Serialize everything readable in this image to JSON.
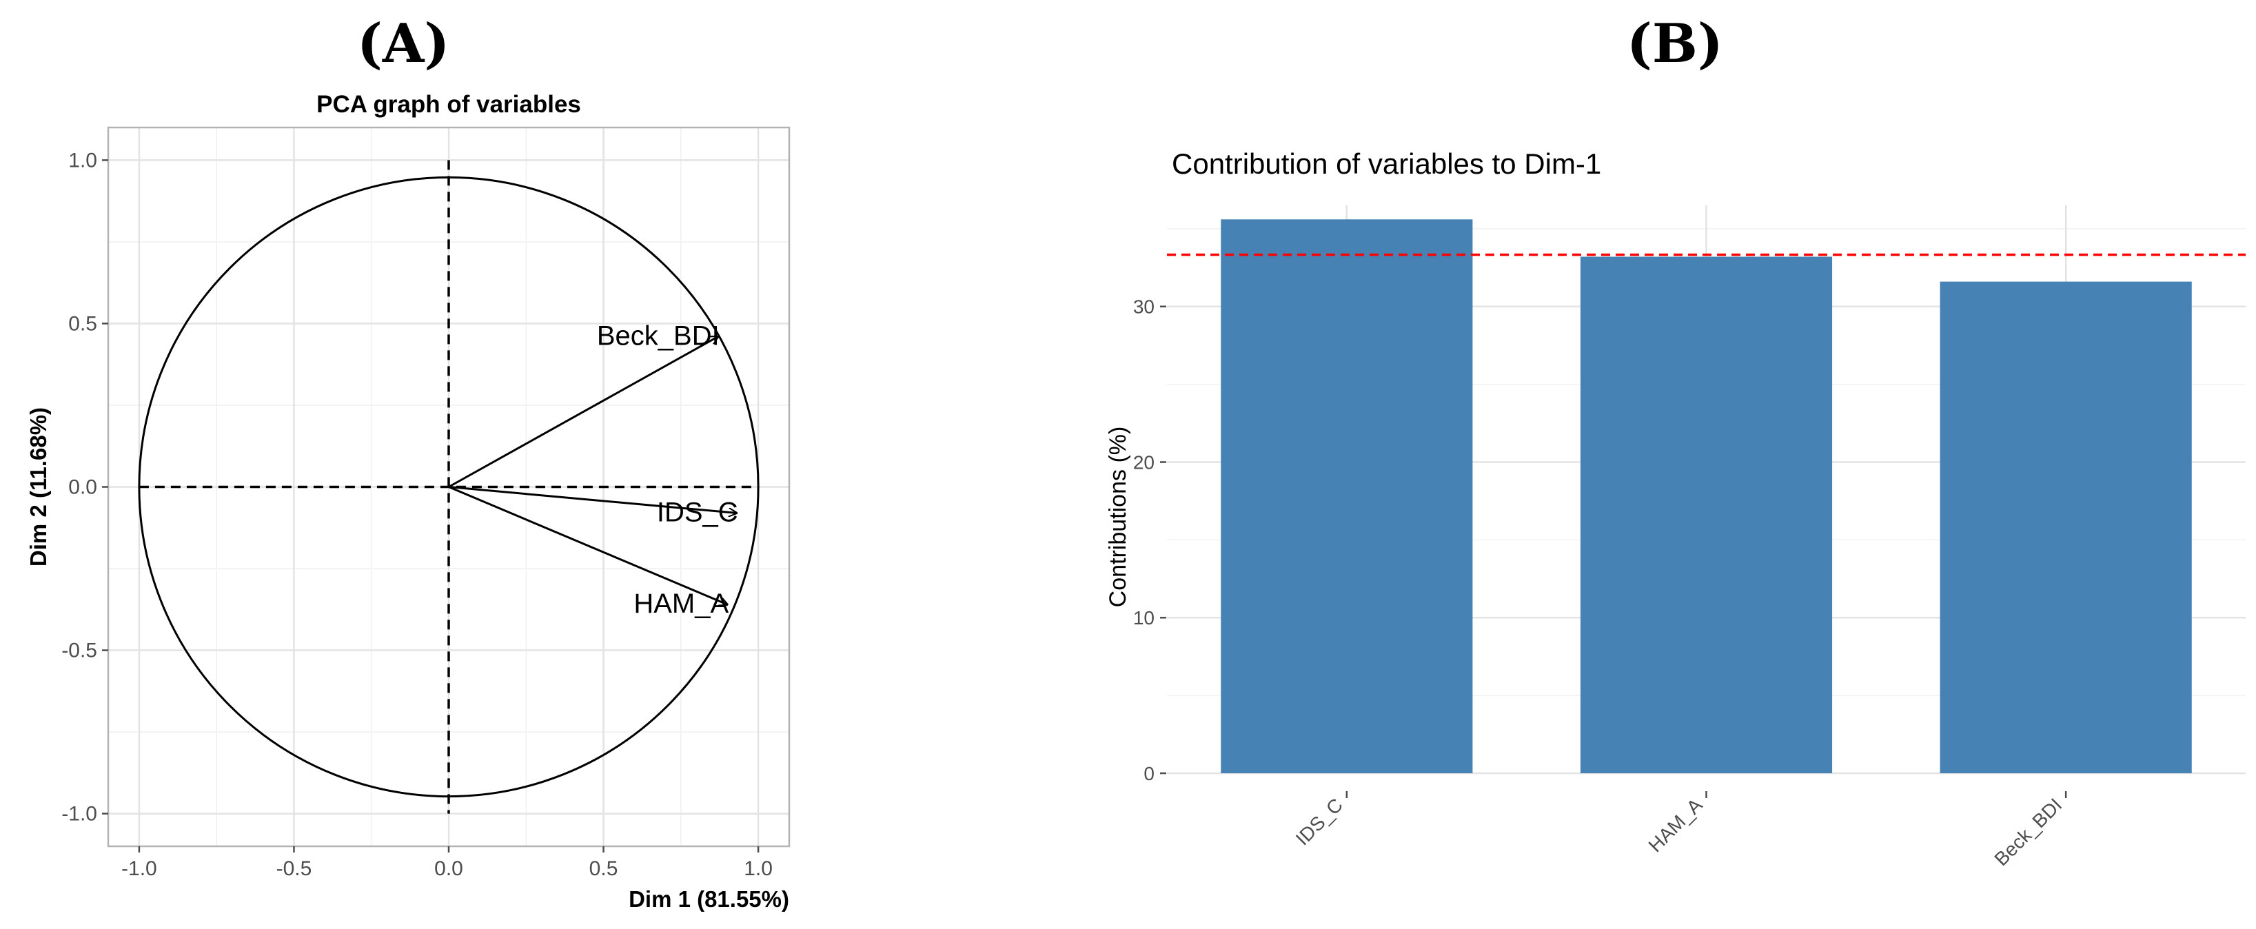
{
  "panels": {
    "a_label": "(A)",
    "b_label": "(B)"
  },
  "chart_data": [
    {
      "type": "scatter",
      "subtype": "pca-variable-correlation-circle",
      "title": "PCA graph of variables",
      "xlabel": "Dim 1 (81.55%)",
      "ylabel": "Dim 2 (11.68%)",
      "xlim": [
        -1.1,
        1.1
      ],
      "ylim": [
        -1.1,
        1.1
      ],
      "xticks": [
        -1.0,
        -0.5,
        0.0,
        0.5,
        1.0
      ],
      "xtick_labels": [
        "-1.0",
        "-0.5",
        "0.0",
        "0.5",
        "1.0"
      ],
      "yticks": [
        -1.0,
        -0.5,
        0.0,
        0.5,
        1.0
      ],
      "ytick_labels": [
        "-1.0",
        "-0.5",
        "0.0",
        "0.5",
        "1.0"
      ],
      "grid": true,
      "unit_circle": true,
      "vectors": [
        {
          "name": "Beck_BDI",
          "x": 0.87,
          "y": 0.46
        },
        {
          "name": "IDS_C",
          "x": 0.93,
          "y": -0.08
        },
        {
          "name": "HAM_A",
          "x": 0.9,
          "y": -0.36
        }
      ]
    },
    {
      "type": "bar",
      "title": "Contribution of variables to Dim-1",
      "xlabel": "",
      "ylabel": "Contributions (%)",
      "categories": [
        "IDS_C",
        "HAM_A",
        "Beck_BDI"
      ],
      "values": [
        35.6,
        33.2,
        31.6
      ],
      "ylim": [
        0,
        36.5
      ],
      "yticks": [
        0,
        10,
        20,
        30
      ],
      "ytick_labels": [
        "0",
        "10",
        "20",
        "30"
      ],
      "reference_line": 33.33,
      "colors": {
        "bar": "#4682B4",
        "reference_line": "#FF0000"
      },
      "grid": true
    }
  ]
}
